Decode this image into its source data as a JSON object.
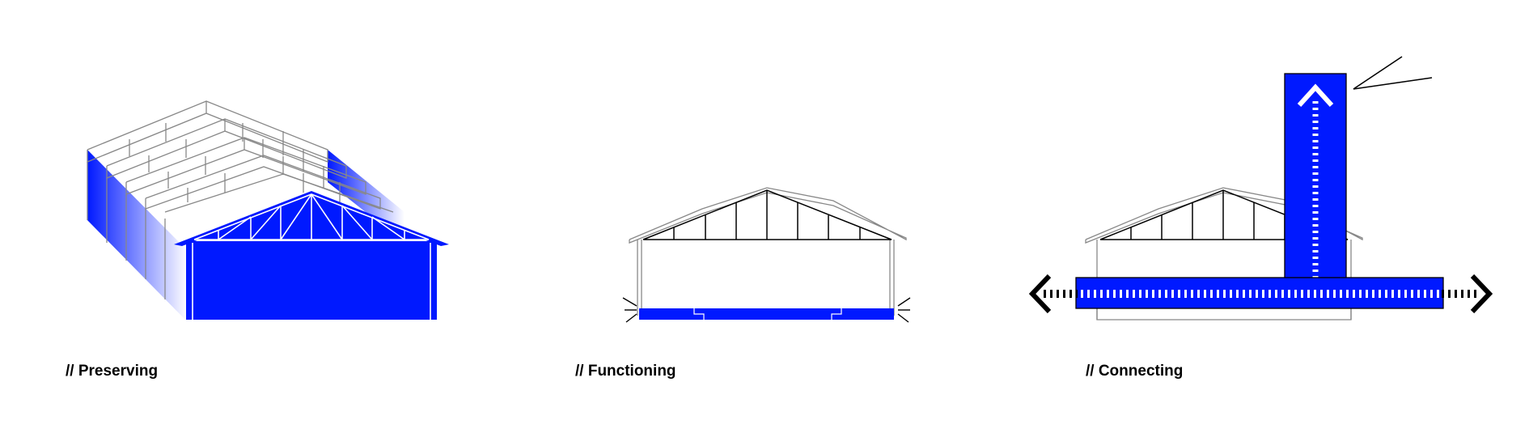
{
  "colors": {
    "accent": "#0019ff",
    "line": "#000000",
    "frame": "#888888",
    "background": "#ffffff"
  },
  "panels": [
    {
      "id": "preserving",
      "caption": "// Preserving"
    },
    {
      "id": "functioning",
      "caption": "// Functioning"
    },
    {
      "id": "connecting",
      "caption": "// Connecting"
    }
  ]
}
